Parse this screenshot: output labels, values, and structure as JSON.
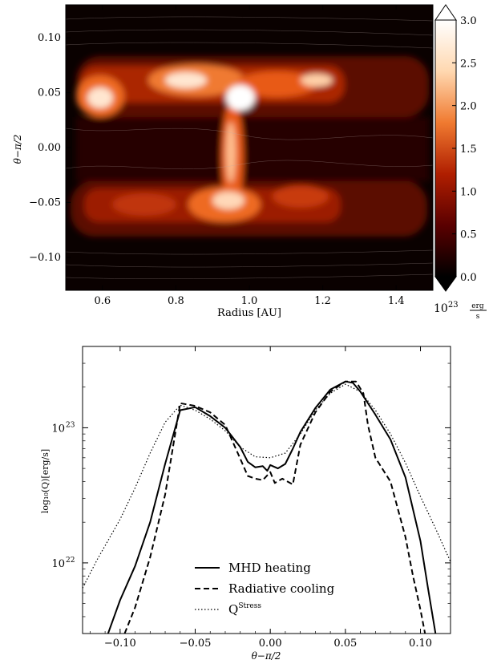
{
  "chart_data": [
    {
      "type": "heatmap",
      "xlabel": "Radius [AU]",
      "ylabel": "θ−π/2",
      "xlim": [
        0.5,
        1.5
      ],
      "ylim": [
        -0.13,
        0.13
      ],
      "xticks": [
        "0.6",
        "0.8",
        "1.0",
        "1.2",
        "1.4"
      ],
      "yticks": [
        "0.10",
        "0.05",
        "0.00",
        "−0.05",
        "−0.10"
      ],
      "colorbar": {
        "min": 0.0,
        "max": 3.0,
        "ticks": [
          "0.0",
          "0.5",
          "1.0",
          "1.5",
          "2.0",
          "2.5",
          "3.0"
        ],
        "unit_prefix": "10",
        "unit_exponent": "23",
        "unit_numerator": "erg",
        "unit_denominator": "s",
        "colormap": [
          "#000000",
          "#5a0000",
          "#b01e00",
          "#f07a30",
          "#ffd8b0",
          "#ffffff"
        ]
      },
      "hotspots": [
        {
          "x": 0.6,
          "y": 0.047,
          "value": 3.0
        },
        {
          "x": 0.84,
          "y": 0.058,
          "value": 2.9
        },
        {
          "x": 0.96,
          "y": 0.035,
          "value": 3.0
        },
        {
          "x": 1.02,
          "y": 0.058,
          "value": 2.6
        },
        {
          "x": 0.92,
          "y": -0.01,
          "value": 2.3
        },
        {
          "x": 0.9,
          "y": -0.055,
          "value": 2.4
        }
      ]
    },
    {
      "type": "line",
      "xlabel": "θ−π/2",
      "ylabel": "log₁₀(Q)[erg/s]",
      "yscale": "log",
      "xlim": [
        -0.125,
        0.12
      ],
      "ylim": [
        3e+21,
        4e+23
      ],
      "xticks": [
        "−0.10",
        "−0.05",
        "0.00",
        "0.05",
        "0.10"
      ],
      "yticks": [
        {
          "base": "10",
          "exp": "22"
        },
        {
          "base": "10",
          "exp": "23"
        }
      ],
      "legend_position": "lower-center",
      "series": [
        {
          "name": "MHD heating",
          "style": "solid",
          "points": [
            [
              -0.108,
              3e+21
            ],
            [
              -0.1,
              5.3e+21
            ],
            [
              -0.09,
              9.5e+21
            ],
            [
              -0.08,
              2e+22
            ],
            [
              -0.07,
              5.4e+22
            ],
            [
              -0.06,
              1.35e+23
            ],
            [
              -0.05,
              1.42e+23
            ],
            [
              -0.04,
              1.22e+23
            ],
            [
              -0.03,
              1e+23
            ],
            [
              -0.02,
              7.2e+22
            ],
            [
              -0.015,
              5.6e+22
            ],
            [
              -0.01,
              5.1e+22
            ],
            [
              -0.005,
              5.2e+22
            ],
            [
              -0.002,
              4.8e+22
            ],
            [
              0.0,
              5.3e+22
            ],
            [
              0.005,
              5e+22
            ],
            [
              0.01,
              5.4e+22
            ],
            [
              0.015,
              7e+22
            ],
            [
              0.02,
              9.3e+22
            ],
            [
              0.03,
              1.4e+23
            ],
            [
              0.04,
              1.92e+23
            ],
            [
              0.05,
              2.2e+23
            ],
            [
              0.055,
              2.15e+23
            ],
            [
              0.06,
              1.85e+23
            ],
            [
              0.07,
              1.25e+23
            ],
            [
              0.08,
              8.2e+22
            ],
            [
              0.09,
              4.3e+22
            ],
            [
              0.1,
              1.45e+22
            ],
            [
              0.105,
              6.5e+21
            ],
            [
              0.11,
              3e+21
            ]
          ]
        },
        {
          "name": "Radiative cooling",
          "style": "dashed",
          "points": [
            [
              -0.097,
              3e+21
            ],
            [
              -0.09,
              4.7e+21
            ],
            [
              -0.08,
              1.1e+22
            ],
            [
              -0.07,
              3.2e+22
            ],
            [
              -0.06,
              1.52e+23
            ],
            [
              -0.05,
              1.45e+23
            ],
            [
              -0.04,
              1.3e+23
            ],
            [
              -0.03,
              1.05e+23
            ],
            [
              -0.02,
              5.9e+22
            ],
            [
              -0.015,
              4.4e+22
            ],
            [
              -0.01,
              4.2e+22
            ],
            [
              -0.005,
              4.1e+22
            ],
            [
              0.0,
              4.7e+22
            ],
            [
              0.003,
              3.9e+22
            ],
            [
              0.008,
              4.2e+22
            ],
            [
              0.015,
              3.8e+22
            ],
            [
              0.02,
              7.5e+22
            ],
            [
              0.03,
              1.3e+23
            ],
            [
              0.04,
              1.85e+23
            ],
            [
              0.05,
              2.2e+23
            ],
            [
              0.057,
              2.2e+23
            ],
            [
              0.062,
              1.8e+23
            ],
            [
              0.065,
              1.05e+23
            ],
            [
              0.07,
              6e+22
            ],
            [
              0.08,
              4e+22
            ],
            [
              0.09,
              1.55e+22
            ],
            [
              0.095,
              8e+21
            ],
            [
              0.1,
              4.5e+21
            ],
            [
              0.103,
              3e+21
            ]
          ]
        },
        {
          "name": "Q",
          "name_superscript": "Stress",
          "style": "dotted",
          "points": [
            [
              -0.125,
              6.5e+21
            ],
            [
              -0.115,
              1.07e+22
            ],
            [
              -0.1,
              2.1e+22
            ],
            [
              -0.09,
              3.6e+22
            ],
            [
              -0.08,
              6.5e+22
            ],
            [
              -0.07,
              1.1e+23
            ],
            [
              -0.06,
              1.47e+23
            ],
            [
              -0.05,
              1.35e+23
            ],
            [
              -0.04,
              1.16e+23
            ],
            [
              -0.03,
              9.5e+22
            ],
            [
              -0.02,
              7.2e+22
            ],
            [
              -0.01,
              6.1e+22
            ],
            [
              0.0,
              6e+22
            ],
            [
              0.01,
              6.5e+22
            ],
            [
              0.02,
              9e+22
            ],
            [
              0.03,
              1.35e+23
            ],
            [
              0.04,
              1.8e+23
            ],
            [
              0.05,
              2.1e+23
            ],
            [
              0.06,
              1.85e+23
            ],
            [
              0.07,
              1.35e+23
            ],
            [
              0.08,
              9e+22
            ],
            [
              0.09,
              5.5e+22
            ],
            [
              0.1,
              3.1e+22
            ],
            [
              0.11,
              1.8e+22
            ],
            [
              0.12,
              1.02e+22
            ]
          ]
        }
      ]
    }
  ]
}
